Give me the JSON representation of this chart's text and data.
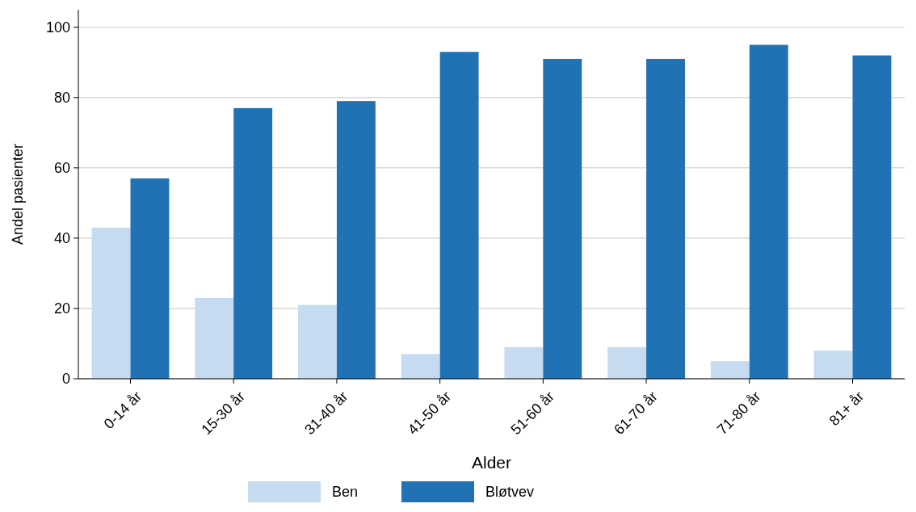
{
  "chart_data": {
    "type": "bar",
    "xlabel": "Alder",
    "ylabel": "Andel pasienter",
    "categories": [
      "0-14 år",
      "15-30 år",
      "31-40 år",
      "41-50 år",
      "51-60 år",
      "61-70 år",
      "71-80 år",
      "81+ år"
    ],
    "series": [
      {
        "name": "Ben",
        "color": "#c6dbef",
        "values": [
          43,
          23,
          21,
          7,
          9,
          9,
          5,
          8
        ]
      },
      {
        "name": "Bløtvev",
        "color": "#2171b5",
        "values": [
          57,
          77,
          79,
          93,
          91,
          91,
          95,
          92
        ]
      }
    ],
    "ylim": [
      0,
      105
    ],
    "yticks": [
      0,
      20,
      40,
      60,
      80,
      100
    ],
    "grid": "y",
    "legend": "bottom"
  }
}
